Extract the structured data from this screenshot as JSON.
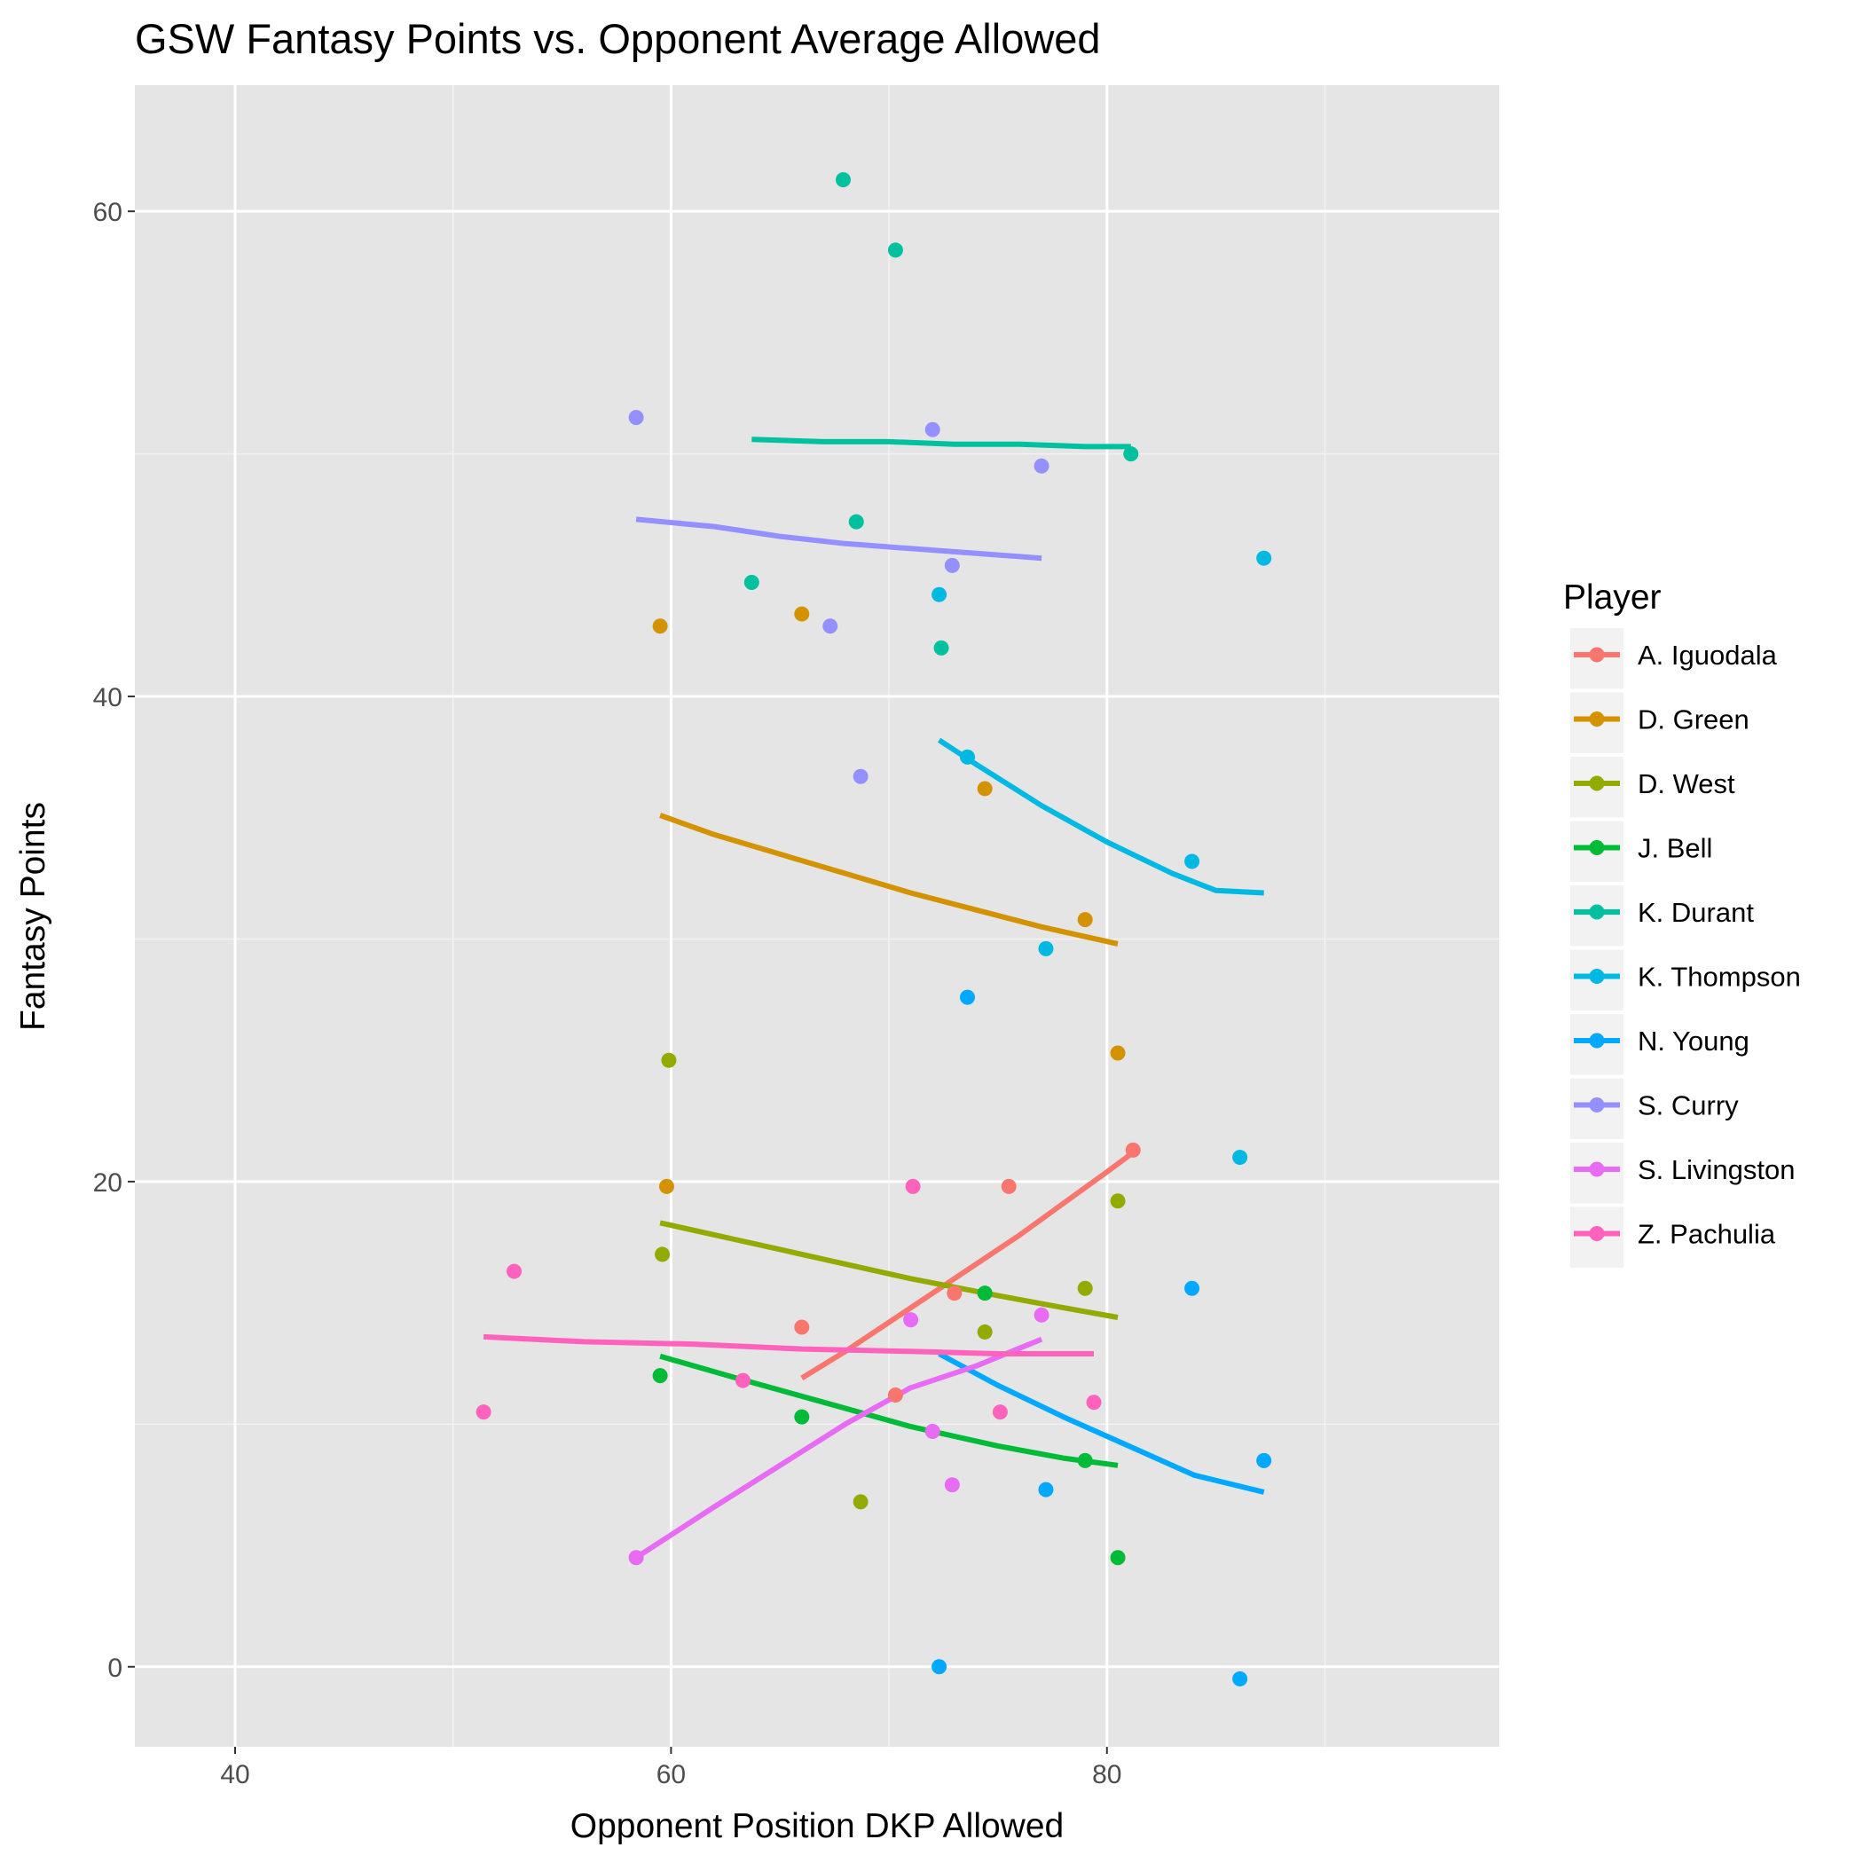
{
  "chart_data": {
    "type": "scatter",
    "title": "GSW Fantasy Points vs. Opponent Average Allowed",
    "xlabel": "Opponent Position DKP Allowed",
    "ylabel": "Fantasy Points",
    "xlim": [
      35.4,
      98
    ],
    "ylim": [
      -3.3,
      65.2
    ],
    "x_ticks": [
      40,
      60,
      80
    ],
    "x_tick_labels": [
      "40",
      "60",
      "80"
    ],
    "y_ticks": [
      0,
      20,
      40,
      60
    ],
    "y_tick_labels": [
      "0",
      "20",
      "40",
      "60"
    ],
    "x_minor": [
      50,
      70,
      90
    ],
    "y_minor": [
      10,
      30,
      50
    ],
    "grid": true,
    "background": "#e5e5e5",
    "legend_title": "Player",
    "legend_position": "right",
    "series": [
      {
        "name": "A. Iguodala",
        "color": "#F8766D",
        "points": [
          [
            66.0,
            14.0
          ],
          [
            70.3,
            11.2
          ],
          [
            73.0,
            15.4
          ],
          [
            75.5,
            19.8
          ],
          [
            81.2,
            21.3
          ]
        ],
        "fit": [
          [
            66.0,
            11.9
          ],
          [
            68,
            13.0
          ],
          [
            70,
            14.2
          ],
          [
            72,
            15.4
          ],
          [
            74,
            16.6
          ],
          [
            76,
            17.8
          ],
          [
            78,
            19.1
          ],
          [
            80,
            20.4
          ],
          [
            81.2,
            21.2
          ]
        ]
      },
      {
        "name": "D. Green",
        "color": "#D39200",
        "points": [
          [
            59.5,
            42.9
          ],
          [
            59.8,
            19.8
          ],
          [
            66.0,
            43.4
          ],
          [
            74.4,
            36.2
          ],
          [
            79.0,
            30.8
          ],
          [
            80.5,
            25.3
          ]
        ],
        "fit": [
          [
            59.5,
            35.1
          ],
          [
            62,
            34.3
          ],
          [
            65,
            33.5
          ],
          [
            68,
            32.7
          ],
          [
            71,
            31.9
          ],
          [
            74,
            31.2
          ],
          [
            77,
            30.5
          ],
          [
            80.5,
            29.8
          ]
        ]
      },
      {
        "name": "D. West",
        "color": "#93AA00",
        "points": [
          [
            59.6,
            17.0
          ],
          [
            59.9,
            25.0
          ],
          [
            68.7,
            6.8
          ],
          [
            74.4,
            13.8
          ],
          [
            79.0,
            15.6
          ],
          [
            80.5,
            19.2
          ]
        ],
        "fit": [
          [
            59.5,
            18.3
          ],
          [
            63,
            17.6
          ],
          [
            67,
            16.8
          ],
          [
            71,
            16.0
          ],
          [
            75,
            15.3
          ],
          [
            78,
            14.8
          ],
          [
            80.5,
            14.4
          ]
        ]
      },
      {
        "name": "J. Bell",
        "color": "#00BA38",
        "points": [
          [
            59.5,
            12.0
          ],
          [
            66.0,
            10.3
          ],
          [
            74.4,
            15.4
          ],
          [
            79.0,
            8.5
          ],
          [
            80.5,
            4.5
          ]
        ],
        "fit": [
          [
            59.5,
            12.8
          ],
          [
            63,
            11.9
          ],
          [
            67,
            10.9
          ],
          [
            71,
            9.9
          ],
          [
            75,
            9.1
          ],
          [
            78,
            8.6
          ],
          [
            80.5,
            8.3
          ]
        ]
      },
      {
        "name": "K. Durant",
        "color": "#00C19F",
        "points": [
          [
            63.7,
            44.7
          ],
          [
            67.9,
            61.3
          ],
          [
            68.5,
            47.2
          ],
          [
            70.3,
            58.4
          ],
          [
            72.4,
            42.0
          ],
          [
            81.1,
            50.0
          ]
        ],
        "fit": [
          [
            63.7,
            50.6
          ],
          [
            67,
            50.5
          ],
          [
            70,
            50.5
          ],
          [
            73,
            50.4
          ],
          [
            76,
            50.4
          ],
          [
            79,
            50.3
          ],
          [
            81.1,
            50.3
          ]
        ]
      },
      {
        "name": "K. Thompson",
        "color": "#00B9E3",
        "points": [
          [
            72.3,
            44.2
          ],
          [
            73.6,
            37.5
          ],
          [
            77.2,
            29.6
          ],
          [
            83.9,
            33.2
          ],
          [
            86.1,
            21.0
          ],
          [
            87.2,
            45.7
          ]
        ],
        "fit": [
          [
            72.3,
            38.2
          ],
          [
            74,
            37.2
          ],
          [
            77,
            35.5
          ],
          [
            80,
            34.0
          ],
          [
            83,
            32.7
          ],
          [
            85,
            32.0
          ],
          [
            87.2,
            31.9
          ]
        ]
      },
      {
        "name": "N. Young",
        "color": "#00A9FF",
        "points": [
          [
            72.3,
            0.0
          ],
          [
            73.6,
            27.6
          ],
          [
            77.2,
            7.3
          ],
          [
            83.9,
            15.6
          ],
          [
            86.1,
            -0.5
          ],
          [
            87.2,
            8.5
          ]
        ],
        "fit": [
          [
            72.3,
            12.9
          ],
          [
            75,
            11.6
          ],
          [
            78,
            10.3
          ],
          [
            81,
            9.1
          ],
          [
            84,
            7.9
          ],
          [
            87.2,
            7.2
          ]
        ]
      },
      {
        "name": "S. Curry",
        "color": "#9590FF",
        "points": [
          [
            58.4,
            51.5
          ],
          [
            67.3,
            42.9
          ],
          [
            68.7,
            36.7
          ],
          [
            72.0,
            51.0
          ],
          [
            72.9,
            45.4
          ],
          [
            77.0,
            49.5
          ]
        ],
        "fit": [
          [
            58.4,
            47.3
          ],
          [
            62,
            47.0
          ],
          [
            65,
            46.6
          ],
          [
            68,
            46.3
          ],
          [
            71,
            46.1
          ],
          [
            74,
            45.9
          ],
          [
            77,
            45.7
          ]
        ]
      },
      {
        "name": "S. Livingston",
        "color": "#E76BF3",
        "points": [
          [
            58.4,
            4.5
          ],
          [
            71.0,
            14.3
          ],
          [
            72.0,
            9.7
          ],
          [
            72.9,
            7.5
          ],
          [
            77.0,
            14.5
          ]
        ],
        "fit": [
          [
            58.4,
            4.5
          ],
          [
            62,
            6.6
          ],
          [
            65,
            8.3
          ],
          [
            68,
            10.0
          ],
          [
            71,
            11.5
          ],
          [
            74,
            12.4
          ],
          [
            77,
            13.5
          ]
        ]
      },
      {
        "name": "Z. Pachulia",
        "color": "#FF62BC",
        "points": [
          [
            51.4,
            10.5
          ],
          [
            52.8,
            16.3
          ],
          [
            63.3,
            11.8
          ],
          [
            71.1,
            19.8
          ],
          [
            75.1,
            10.5
          ],
          [
            79.4,
            10.9
          ]
        ],
        "fit": [
          [
            51.4,
            13.6
          ],
          [
            56,
            13.4
          ],
          [
            61,
            13.3
          ],
          [
            66,
            13.1
          ],
          [
            71,
            13.0
          ],
          [
            75,
            12.9
          ],
          [
            79.4,
            12.9
          ]
        ]
      }
    ]
  }
}
